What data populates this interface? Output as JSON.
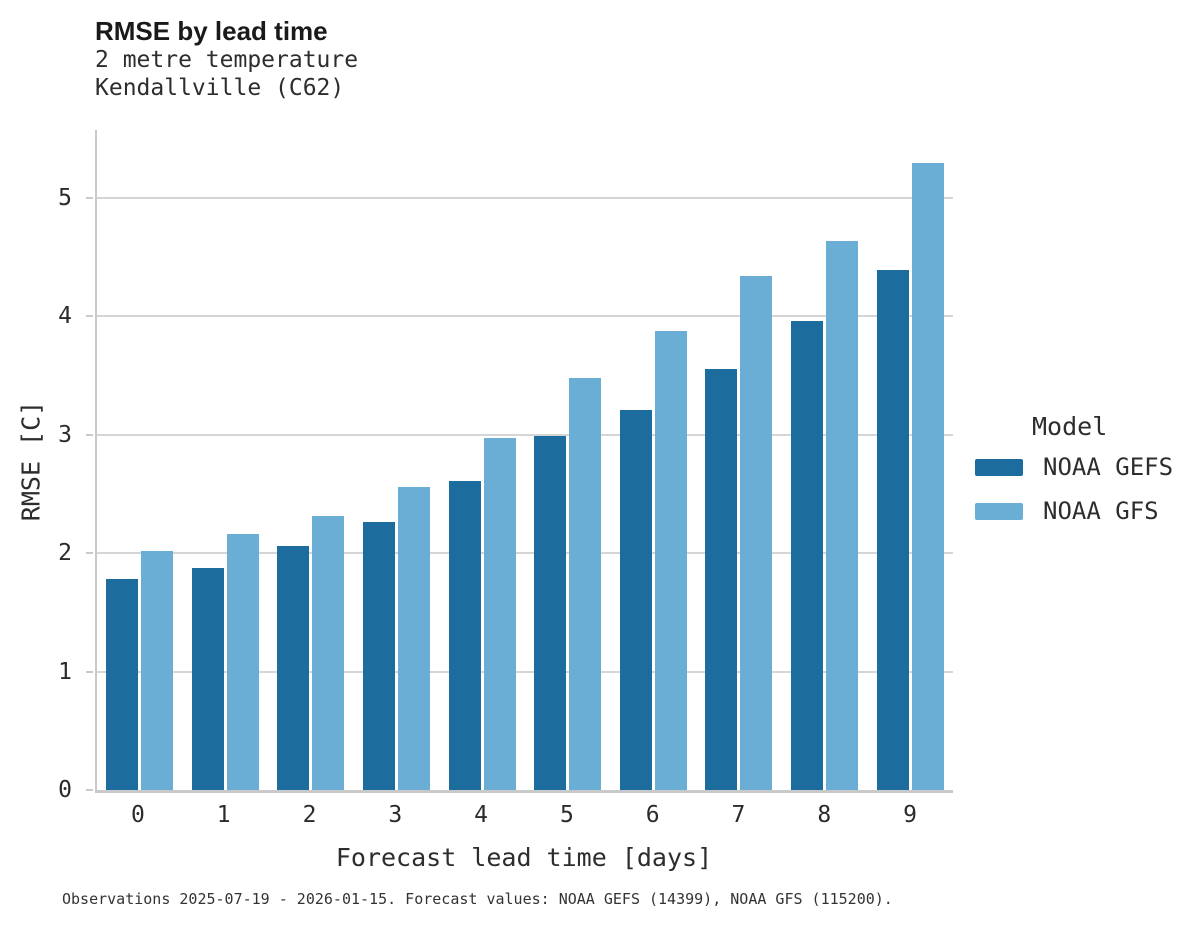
{
  "header": {
    "title": "RMSE by lead time",
    "subtitle_line1": "2 metre temperature",
    "subtitle_line2": "Kendallville (C62)"
  },
  "chart_data": {
    "type": "bar",
    "title": "RMSE by lead time",
    "subtitle": [
      "2 metre temperature",
      "Kendallville (C62)"
    ],
    "categories": [
      "0",
      "1",
      "2",
      "3",
      "4",
      "5",
      "6",
      "7",
      "8",
      "9"
    ],
    "series": [
      {
        "name": "NOAA GEFS",
        "color": "#1c6d9e",
        "values": [
          1.78,
          1.87,
          2.06,
          2.26,
          2.61,
          2.99,
          3.21,
          3.55,
          3.96,
          4.39
        ]
      },
      {
        "name": "NOAA GFS",
        "color": "#6aaed6",
        "values": [
          2.02,
          2.16,
          2.31,
          2.56,
          2.97,
          3.48,
          3.87,
          4.34,
          4.63,
          5.29
        ]
      }
    ],
    "xlabel": "Forecast lead time [days]",
    "ylabel": "RMSE [C]",
    "ylim": [
      0,
      5.57
    ],
    "yticks": [
      0,
      1,
      2,
      3,
      4,
      5
    ],
    "grid": "horizontal",
    "legend_title": "Model",
    "legend_position": "right"
  },
  "legend": {
    "title": "Model",
    "items": [
      {
        "label": "NOAA GEFS",
        "color": "#1c6d9e"
      },
      {
        "label": "NOAA GFS",
        "color": "#6aaed6"
      }
    ]
  },
  "colors": {
    "gridline": "#d5d5d5",
    "spine": "#c9c9c9"
  },
  "caption": "Observations 2025-07-19 - 2026-01-15. Forecast values: NOAA GEFS (14399), NOAA GFS (115200)."
}
